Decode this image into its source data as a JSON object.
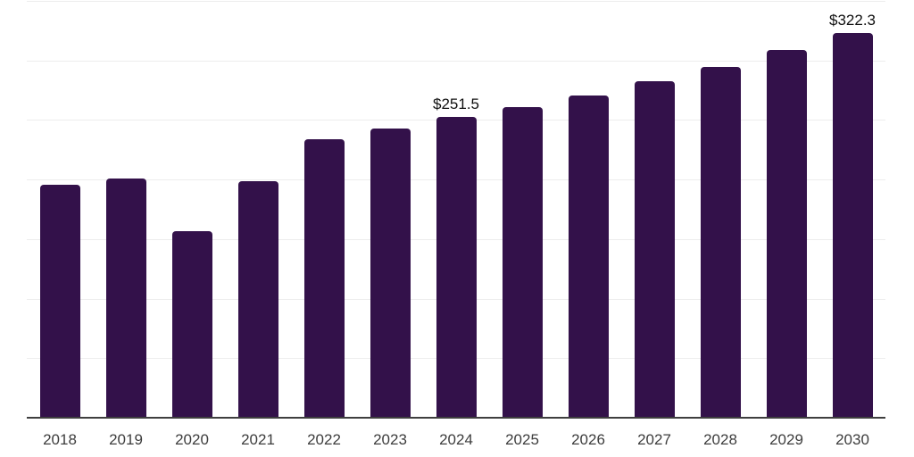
{
  "chart_data": {
    "type": "bar",
    "title": "",
    "xlabel": "",
    "ylabel": "",
    "categories": [
      "2018",
      "2019",
      "2020",
      "2021",
      "2022",
      "2023",
      "2024",
      "2025",
      "2026",
      "2027",
      "2028",
      "2029",
      "2030"
    ],
    "values": [
      195,
      200,
      156,
      198,
      233,
      242,
      251.5,
      260,
      270,
      282,
      294,
      308,
      322.3
    ],
    "data_labels": {
      "2024": "$251.5",
      "2030": "$322.3"
    },
    "ylim": [
      0,
      350
    ],
    "grid_step": 50,
    "grid": "horizontal",
    "legend_position": "none",
    "y_axis_tick_labels_visible": false,
    "colors": {
      "bar": "#33114a",
      "gridline": "#ededed",
      "axis_line": "#3f3f3f",
      "tick_label": "#3d3d3d",
      "data_label": "#101010",
      "background": "#ffffff"
    }
  }
}
